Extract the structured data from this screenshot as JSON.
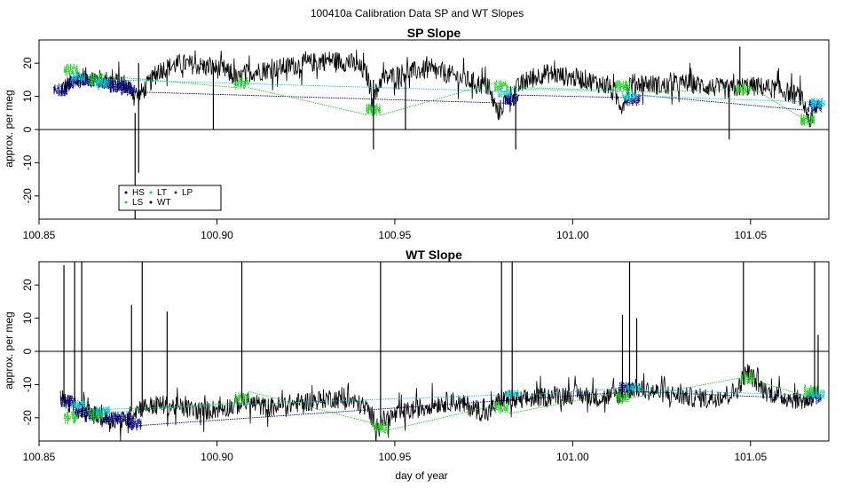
{
  "figure_title": "100410a   Calibration Data SP and WT Slopes",
  "legend": {
    "entries": [
      {
        "label": "HS",
        "color": "#000080"
      },
      {
        "label": "LS",
        "color": "#22cc22"
      },
      {
        "label": "LT",
        "color": "#00cccc"
      },
      {
        "label": "WT",
        "color": "#000000"
      },
      {
        "label": "LP",
        "color": "#333333"
      }
    ]
  },
  "chart_data": [
    {
      "type": "line",
      "title": "SP Slope",
      "xlabel": "",
      "ylabel": "approx. per meg",
      "xlim": [
        100.85,
        101.072
      ],
      "ylim": [
        -27,
        27
      ],
      "xticks": [
        100.85,
        100.9,
        100.95,
        101.0,
        101.05
      ],
      "xtick_labels": [
        "100.85",
        "100.90",
        "100.95",
        "101.00",
        "101.05"
      ],
      "yticks": [
        -20,
        -10,
        0,
        10,
        20
      ],
      "ytick_labels": [
        "-20",
        "-10",
        "0",
        "10",
        "20"
      ],
      "hline": 0,
      "series": [
        {
          "name": "WT",
          "color": "#000000",
          "x": [
            100.856,
            100.862,
            100.868,
            100.874,
            100.878,
            100.884,
            100.89,
            100.896,
            100.902,
            100.906,
            100.908,
            100.914,
            100.92,
            100.926,
            100.932,
            100.938,
            100.942,
            100.944,
            100.946,
            100.952,
            100.958,
            100.964,
            100.97,
            100.976,
            100.979,
            100.982,
            100.986,
            100.992,
            100.998,
            101.004,
            101.01,
            101.014,
            101.016,
            101.02,
            101.026,
            101.032,
            101.038,
            101.044,
            101.048,
            101.052,
            101.058,
            101.064,
            101.067,
            101.069
          ],
          "y": [
            12,
            16,
            15,
            14,
            10,
            18,
            20,
            19,
            18,
            15,
            17,
            18,
            19,
            20,
            21,
            20,
            17,
            9,
            15,
            17,
            18,
            17,
            15,
            13,
            5,
            10,
            14,
            17,
            16,
            15,
            13,
            7,
            14,
            14,
            13,
            14,
            13,
            12,
            13,
            13,
            12,
            10,
            2,
            8
          ],
          "spread": 3
        },
        {
          "name": "HS",
          "color": "#000080",
          "x": [
            100.856,
            100.86,
            100.864,
            100.868,
            100.872,
            100.875,
            100.983,
            101.017,
            101.068
          ],
          "y": [
            12,
            14,
            15,
            14,
            13,
            12,
            9,
            9,
            7
          ],
          "spread": 2
        },
        {
          "name": "LS",
          "color": "#22cc22",
          "x": [
            100.859,
            100.866,
            100.907,
            100.944,
            100.98,
            101.014,
            101.048,
            101.066
          ],
          "y": [
            18,
            15,
            14,
            6,
            13,
            13,
            12,
            3
          ],
          "spread": 2
        },
        {
          "name": "LT",
          "color": "#00cccc",
          "x": [
            100.861,
            100.868,
            100.981,
            101.016,
            101.069
          ],
          "y": [
            16,
            14,
            11,
            10,
            8
          ],
          "spread": 1.5
        }
      ],
      "spikes": [
        {
          "x": 100.877,
          "y0": 5,
          "y1": -27
        },
        {
          "x": 100.878,
          "y0": 20,
          "y1": -13
        },
        {
          "x": 100.899,
          "y0": 20,
          "y1": 0
        },
        {
          "x": 100.944,
          "y0": 15,
          "y1": -6
        },
        {
          "x": 100.953,
          "y0": 16,
          "y1": 0
        },
        {
          "x": 100.984,
          "y0": 10,
          "y1": -6
        },
        {
          "x": 101.044,
          "y0": 12,
          "y1": -3
        },
        {
          "x": 101.047,
          "y0": 14,
          "y1": 25
        }
      ]
    },
    {
      "type": "line",
      "title": "WT Slope",
      "xlabel": "day of year",
      "ylabel": "approx. per meg",
      "xlim": [
        100.85,
        101.072
      ],
      "ylim": [
        -27,
        27
      ],
      "xticks": [
        100.85,
        100.9,
        100.95,
        101.0,
        101.05
      ],
      "xtick_labels": [
        "100.85",
        "100.90",
        "100.95",
        "101.00",
        "101.05"
      ],
      "yticks": [
        -20,
        -10,
        0,
        10,
        20
      ],
      "ytick_labels": [
        "-20",
        "-10",
        "0",
        "10",
        "20"
      ],
      "hline": 0,
      "series": [
        {
          "name": "WT",
          "color": "#000000",
          "x": [
            100.856,
            100.862,
            100.868,
            100.874,
            100.878,
            100.884,
            100.89,
            100.896,
            100.902,
            100.906,
            100.908,
            100.914,
            100.92,
            100.926,
            100.932,
            100.938,
            100.942,
            100.945,
            100.948,
            100.954,
            100.96,
            100.966,
            100.972,
            100.976,
            100.98,
            100.984,
            100.99,
            100.996,
            101.002,
            101.008,
            101.014,
            101.017,
            101.022,
            101.028,
            101.034,
            101.04,
            101.046,
            101.049,
            101.054,
            101.06,
            101.066,
            101.069
          ],
          "y": [
            -14,
            -18,
            -20,
            -21,
            -17,
            -16,
            -17,
            -18,
            -17,
            -16,
            -15,
            -17,
            -16,
            -15,
            -14,
            -15,
            -17,
            -22,
            -20,
            -18,
            -16,
            -15,
            -17,
            -19,
            -14,
            -15,
            -14,
            -13,
            -13,
            -14,
            -13,
            -11,
            -12,
            -13,
            -14,
            -14,
            -12,
            -6,
            -12,
            -14,
            -15,
            -12
          ],
          "spread": 3
        },
        {
          "name": "HS",
          "color": "#000080",
          "x": [
            100.858,
            100.862,
            100.866,
            100.87,
            100.874,
            100.877,
            101.015,
            101.068
          ],
          "y": [
            -15,
            -18,
            -19,
            -20,
            -20,
            -22,
            -11,
            -14
          ],
          "spread": 2
        },
        {
          "name": "LS",
          "color": "#22cc22",
          "x": [
            100.859,
            100.866,
            100.907,
            100.946,
            100.98,
            101.014,
            101.049,
            101.067
          ],
          "y": [
            -20,
            -19,
            -14,
            -23,
            -17,
            -14,
            -8,
            -12
          ],
          "spread": 2
        },
        {
          "name": "LT",
          "color": "#00cccc",
          "x": [
            100.861,
            100.868,
            100.983,
            101.017,
            101.069
          ],
          "y": [
            -16,
            -18,
            -13,
            -11,
            -13
          ],
          "spread": 1.5
        }
      ],
      "spikes": [
        {
          "x": 100.857,
          "y0": -15,
          "y1": 26
        },
        {
          "x": 100.86,
          "y0": -15,
          "y1": 27
        },
        {
          "x": 100.862,
          "y0": -15,
          "y1": 27
        },
        {
          "x": 100.876,
          "y0": -18,
          "y1": 14
        },
        {
          "x": 100.879,
          "y0": -18,
          "y1": 27
        },
        {
          "x": 100.886,
          "y0": -16,
          "y1": 12
        },
        {
          "x": 100.907,
          "y0": -15,
          "y1": 27
        },
        {
          "x": 100.946,
          "y0": -20,
          "y1": 27
        },
        {
          "x": 100.98,
          "y0": -16,
          "y1": 27
        },
        {
          "x": 100.983,
          "y0": -15,
          "y1": 27
        },
        {
          "x": 101.014,
          "y0": -13,
          "y1": 11
        },
        {
          "x": 101.016,
          "y0": -12,
          "y1": 27
        },
        {
          "x": 101.018,
          "y0": -12,
          "y1": 10
        },
        {
          "x": 101.048,
          "y0": -10,
          "y1": 27
        },
        {
          "x": 101.068,
          "y0": -13,
          "y1": 27
        },
        {
          "x": 101.069,
          "y0": -13,
          "y1": 5
        }
      ]
    }
  ]
}
